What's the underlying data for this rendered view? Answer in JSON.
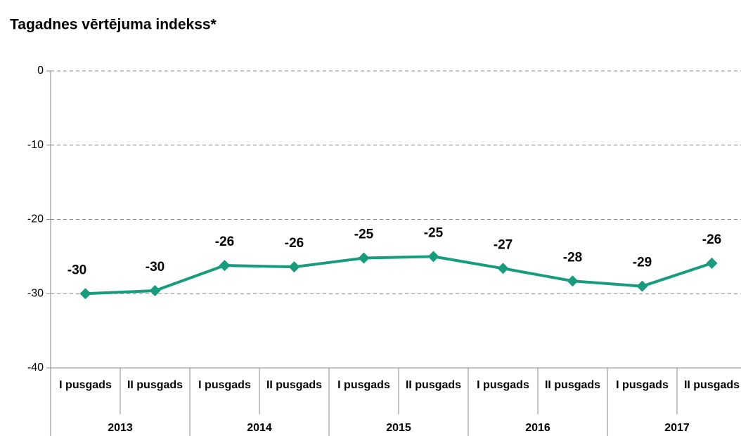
{
  "chart_data": {
    "type": "line",
    "title": "Tagadnes vērtējuma indekss*",
    "categories": [
      "I pusgads",
      "II pusgads",
      "I pusgads",
      "II pusgads",
      "I pusgads",
      "II pusgads",
      "I pusgads",
      "II pusgads",
      "I pusgads",
      "II pusgads"
    ],
    "years": [
      "2013",
      "2014",
      "2015",
      "2016",
      "2017"
    ],
    "series": [
      {
        "color": "#179c7d",
        "values": [
          -30.0,
          -29.6,
          -26.2,
          -26.4,
          -25.2,
          -25.0,
          -26.6,
          -28.3,
          -29.0,
          -25.9
        ],
        "value_labels": [
          "-30",
          "-30",
          "-26",
          "-26",
          "-25",
          "-25",
          "-27",
          "-28",
          "-29",
          "-26"
        ]
      }
    ],
    "ylim": [
      -40,
      0
    ],
    "yticks": [
      0,
      -10,
      -20,
      -30,
      -40
    ],
    "grid": true
  }
}
